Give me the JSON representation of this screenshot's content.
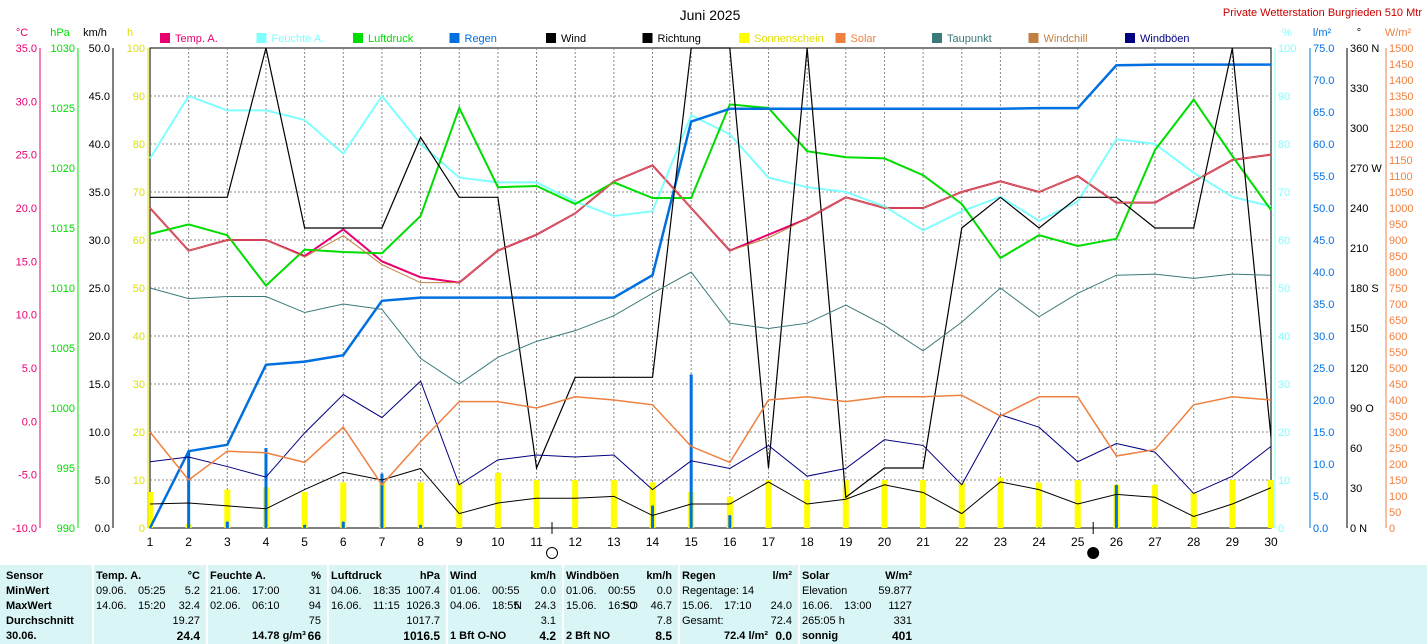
{
  "page_title": "Juni 2025",
  "station": "Private Wetterstation Burgrieden 510 Mtr",
  "colors": {
    "temp": "#e8006e",
    "humidity": "#80ffff",
    "pressure": "#00dd00",
    "rain": "#0070e0",
    "wind": "#000000",
    "direction": "#000000",
    "sunshine": "#ffff00",
    "solar": "#f08040",
    "dewpoint": "#3a7a7a",
    "windchill": "#c08040",
    "gusts": "#000080"
  },
  "legend": [
    {
      "key": "temp",
      "label": "Temp. A."
    },
    {
      "key": "humidity",
      "label": "Feuchte A."
    },
    {
      "key": "pressure",
      "label": "Luftdruck"
    },
    {
      "key": "rain",
      "label": "Regen"
    },
    {
      "key": "wind",
      "label": "Wind"
    },
    {
      "key": "direction",
      "label": "Richtung"
    },
    {
      "key": "sunshine",
      "label": "Sonnenschein"
    },
    {
      "key": "solar",
      "label": "Solar"
    },
    {
      "key": "dewpoint",
      "label": "Taupunkt"
    },
    {
      "key": "windchill",
      "label": "Windchill"
    },
    {
      "key": "gusts",
      "label": "Windböen"
    }
  ],
  "chart_data": {
    "type": "line",
    "title": "Juni 2025",
    "x": [
      1,
      2,
      3,
      4,
      5,
      6,
      7,
      8,
      9,
      10,
      11,
      12,
      13,
      14,
      15,
      16,
      17,
      18,
      19,
      20,
      21,
      22,
      23,
      24,
      25,
      26,
      27,
      28,
      29,
      30
    ],
    "axes": {
      "temp": {
        "unit": "°C",
        "min": -10,
        "max": 35,
        "ticks": [
          "35.0",
          "30.0",
          "25.0",
          "20.0",
          "15.0",
          "10.0",
          "5.0",
          "0.0",
          "-5.0",
          "-10.0"
        ],
        "color": "#e8006e"
      },
      "pressure": {
        "unit": "hPa",
        "min": 990,
        "max": 1030,
        "ticks": [
          "1030",
          "1025",
          "1020",
          "1015",
          "1010",
          "1005",
          "1000",
          "995",
          "990"
        ],
        "color": "#00dd00"
      },
      "wind": {
        "unit": "km/h",
        "min": 0,
        "max": 50,
        "ticks": [
          "50.0",
          "45.0",
          "40.0",
          "35.0",
          "30.0",
          "25.0",
          "20.0",
          "15.0",
          "10.0",
          "5.0",
          "0.0"
        ],
        "color": "#000000"
      },
      "sunshine": {
        "unit": "h",
        "min": 0,
        "max": 100,
        "ticks": [
          "100",
          "90",
          "80",
          "70",
          "60",
          "50",
          "40",
          "30",
          "20",
          "10",
          "0"
        ],
        "color": "#e0e000"
      },
      "humidity": {
        "unit": "%",
        "min": 0,
        "max": 100,
        "ticks": [
          "100",
          "90",
          "80",
          "70",
          "60",
          "50",
          "40",
          "30",
          "20",
          "10",
          "0"
        ],
        "color": "#80ffff"
      },
      "rain": {
        "unit": "l/m²",
        "min": 0,
        "max": 75,
        "ticks": [
          "75.0",
          "70.0",
          "65.0",
          "60.0",
          "55.0",
          "50.0",
          "45.0",
          "40.0",
          "35.0",
          "30.0",
          "25.0",
          "20.0",
          "15.0",
          "10.0",
          "5.0",
          "0.0"
        ],
        "color": "#0070e0"
      },
      "direction": {
        "unit": "°",
        "min": 0,
        "max": 360,
        "ticks": [
          "360 N",
          "330",
          "300",
          "270 W",
          "240",
          "210",
          "180 S",
          "150",
          "120",
          "90 O",
          "60",
          "30",
          "0 N"
        ],
        "color": "#000000"
      },
      "solar": {
        "unit": "W/m²",
        "min": 0,
        "max": 1500,
        "ticks": [
          "1500",
          "1450",
          "1400",
          "1350",
          "1300",
          "1250",
          "1200",
          "1150",
          "1100",
          "1050",
          "1000",
          "950",
          "900",
          "850",
          "800",
          "750",
          "700",
          "650",
          "600",
          "550",
          "500",
          "450",
          "400",
          "350",
          "300",
          "250",
          "200",
          "150",
          "100",
          "50",
          "0"
        ],
        "color": "#f08040"
      }
    },
    "series": [
      {
        "key": "temp",
        "axis": "temp",
        "name": "Temp. A.",
        "width": 2,
        "values": [
          20.0,
          16.0,
          17.0,
          17.0,
          15.5,
          18.0,
          15.0,
          13.5,
          13.0,
          16.0,
          17.5,
          19.5,
          22.5,
          24.0,
          20.0,
          16.0,
          17.5,
          19.0,
          21.0,
          20.0,
          20.0,
          21.5,
          22.5,
          21.5,
          23.0,
          20.5,
          20.5,
          22.5,
          24.5,
          25.0
        ]
      },
      {
        "key": "humidity",
        "axis": "humidity",
        "name": "Feuchte A.",
        "width": 2,
        "values": [
          77,
          90,
          87,
          87,
          85,
          78,
          90,
          80,
          73,
          72,
          72,
          68,
          65,
          66,
          86,
          82,
          73,
          71,
          70,
          67,
          62,
          66,
          69,
          64,
          68,
          81,
          80,
          74,
          69,
          67
        ]
      },
      {
        "key": "pressure",
        "axis": "pressure",
        "name": "Luftdruck",
        "width": 2,
        "values": [
          1014.5,
          1015.3,
          1014.4,
          1010.2,
          1013.2,
          1013.0,
          1012.9,
          1016.0,
          1025.0,
          1018.4,
          1018.5,
          1017.0,
          1018.8,
          1017.5,
          1017.5,
          1025.3,
          1025.0,
          1021.4,
          1020.9,
          1020.8,
          1019.4,
          1017.0,
          1012.5,
          1014.4,
          1013.5,
          1014.1,
          1021.5,
          1025.7,
          1021.0,
          1016.5
        ]
      },
      {
        "key": "rain",
        "axis": "rain",
        "name": "Regen",
        "width": 2.5,
        "step": true,
        "values": [
          0,
          12.0,
          13.0,
          25.5,
          26.0,
          27.0,
          35.5,
          36.0,
          36.0,
          36.0,
          36.0,
          36.0,
          36.0,
          39.5,
          63.5,
          65.5,
          65.5,
          65.5,
          65.5,
          65.5,
          65.5,
          65.5,
          65.5,
          65.6,
          65.6,
          72.3,
          72.4,
          72.4,
          72.4,
          72.4
        ]
      },
      {
        "key": "wind",
        "axis": "wind",
        "name": "Wind",
        "width": 1,
        "values": [
          2.5,
          2.6,
          2.3,
          2.0,
          4.0,
          5.8,
          5.0,
          6.2,
          1.5,
          2.6,
          3.1,
          3.1,
          3.3,
          1.3,
          2.5,
          2.5,
          4.8,
          2.5,
          3.0,
          4.5,
          3.7,
          1.5,
          4.8,
          4.0,
          2.5,
          3.5,
          3.2,
          1.2,
          2.5,
          4.2
        ]
      },
      {
        "key": "direction",
        "axis": "direction",
        "name": "Richtung",
        "width": 1.2,
        "values": [
          248,
          248,
          248,
          360,
          225,
          225,
          225,
          293,
          248,
          248,
          45,
          113,
          113,
          113,
          360,
          360,
          45,
          360,
          23,
          45,
          45,
          225,
          248,
          225,
          248,
          248,
          225,
          225,
          360,
          68
        ]
      },
      {
        "key": "dewpoint",
        "axis": "temp",
        "name": "Taupunkt",
        "width": 1,
        "values": [
          12.5,
          11.5,
          11.7,
          11.7,
          10.2,
          11.0,
          10.5,
          5.9,
          3.5,
          6.0,
          7.5,
          8.5,
          9.9,
          12.0,
          14.0,
          9.2,
          8.7,
          9.2,
          10.9,
          9.0,
          6.6,
          9.3,
          12.5,
          9.8,
          12.0,
          13.7,
          13.8,
          13.4,
          13.8,
          13.7
        ]
      },
      {
        "key": "windchill",
        "axis": "temp",
        "name": "Windchill",
        "width": 1,
        "values": [
          20.0,
          16.0,
          17.0,
          17.0,
          15.4,
          17.4,
          14.7,
          13.0,
          13.0,
          16.0,
          17.5,
          19.5,
          22.5,
          24.0,
          20.0,
          16.0,
          17.2,
          19.0,
          21.0,
          20.0,
          20.0,
          21.5,
          22.5,
          21.5,
          23.0,
          20.5,
          20.5,
          22.5,
          24.5,
          25.0
        ]
      },
      {
        "key": "gusts",
        "axis": "wind",
        "name": "Windböen",
        "width": 1,
        "values": [
          6.9,
          7.4,
          6.4,
          5.3,
          9.9,
          13.9,
          11.5,
          15.3,
          4.5,
          7.1,
          7.6,
          7.4,
          7.6,
          4.0,
          7.0,
          6.2,
          8.6,
          5.4,
          6.2,
          9.2,
          8.6,
          4.5,
          11.8,
          10.5,
          6.9,
          8.8,
          7.9,
          3.6,
          5.4,
          8.5
        ]
      },
      {
        "key": "solar",
        "axis": "solar",
        "name": "Solar",
        "width": 1.5,
        "values": [
          300,
          150,
          240,
          235,
          205,
          315,
          135,
          270,
          395,
          395,
          375,
          410,
          400,
          385,
          255,
          205,
          400,
          410,
          395,
          410,
          410,
          415,
          350,
          410,
          410,
          225,
          245,
          385,
          410,
          400
        ]
      },
      {
        "key": "sunshine",
        "axis": "sunshine",
        "name": "Sonnenschein",
        "type": "bar",
        "values": [
          7.5,
          0.8,
          8.0,
          8.5,
          7.5,
          9.5,
          9.5,
          9.5,
          9.5,
          11.5,
          10.0,
          10.0,
          10.0,
          9.5,
          7.5,
          6.5,
          10.0,
          10.0,
          10.0,
          10.0,
          10.0,
          9.5,
          10.5,
          9.5,
          10.0,
          9.0,
          9.0,
          7.5,
          10.0,
          10.0
        ]
      },
      {
        "key": "rain",
        "axis": "rain",
        "name": "Regen",
        "type": "bar",
        "values": [
          0,
          12.0,
          1.0,
          12.5,
          0.5,
          1.0,
          8.5,
          0.5,
          0,
          0,
          0,
          0,
          0,
          3.5,
          24.0,
          2.0,
          0,
          0,
          0,
          0,
          0,
          0,
          0,
          0.1,
          0,
          6.7,
          0.1,
          0,
          0,
          0
        ]
      }
    ],
    "moon_marks": [
      {
        "phase": "full",
        "x": 11
      },
      {
        "phase": "new",
        "x": 25
      }
    ],
    "grid": true
  },
  "stats": [
    {
      "header": "Sensor",
      "header_unit": "",
      "rows": [
        {
          "label": "MinWert"
        },
        {
          "label": "MaxWert"
        },
        {
          "label": "Durchschnitt"
        },
        {
          "label": "30.06."
        }
      ]
    },
    {
      "header": "Temp. A.",
      "header_unit": "°C",
      "rows": [
        {
          "a": "09.06.",
          "b": "05:25",
          "c": "5.2"
        },
        {
          "a": "14.06.",
          "b": "15:20",
          "c": "32.4"
        },
        {
          "a": "",
          "b": "",
          "c": "19.27"
        },
        {
          "a": "",
          "b": "",
          "c": "24.4"
        }
      ]
    },
    {
      "header": "Feuchte A.",
      "header_unit": "%",
      "rows": [
        {
          "a": "21.06.",
          "b": "17:00",
          "c": "31"
        },
        {
          "a": "02.06.",
          "b": "06:10",
          "c": "94"
        },
        {
          "a": "",
          "b": "",
          "c": "75"
        },
        {
          "a": "",
          "b": "14.78 g/m³",
          "c": "66"
        }
      ]
    },
    {
      "header": "Luftdruck",
      "header_unit": "hPa",
      "rows": [
        {
          "a": "04.06.",
          "b": "18:35",
          "c": "1007.4"
        },
        {
          "a": "16.06.",
          "b": "11:15",
          "c": "1026.3"
        },
        {
          "a": "",
          "b": "",
          "c": "1017.7"
        },
        {
          "a": "",
          "b": "",
          "c": "1016.5"
        }
      ]
    },
    {
      "header": "Wind",
      "header_unit": "km/h",
      "rows": [
        {
          "a": "01.06.",
          "b": "00:55",
          "c": "0.0"
        },
        {
          "a": "04.06.",
          "b": "18:55",
          "d": "N",
          "c": "24.3"
        },
        {
          "a": "",
          "b": "",
          "c": "3.1"
        },
        {
          "a": "1 Bft O-NO",
          "b": "",
          "c": "4.2"
        }
      ]
    },
    {
      "header": "Windböen",
      "header_unit": "km/h",
      "rows": [
        {
          "a": "01.06.",
          "b": "00:55",
          "c": "0.0"
        },
        {
          "a": "15.06.",
          "b": "16:50",
          "d": "SO",
          "c": "46.7"
        },
        {
          "a": "",
          "b": "",
          "c": "7.8"
        },
        {
          "a": "2 Bft NO",
          "b": "",
          "c": "8.5"
        }
      ]
    },
    {
      "header": "Regen",
      "header_unit": "l/m²",
      "rows": [
        {
          "a": "Regentage: 14",
          "b": "",
          "c": ""
        },
        {
          "a": "15.06.",
          "b": "17:10",
          "c": "24.0"
        },
        {
          "a": "Gesamt:",
          "b": "",
          "c": "72.4"
        },
        {
          "a": "",
          "b": "72.4 l/m²",
          "c": "0.0"
        }
      ]
    },
    {
      "header": "Solar",
      "header_unit": "W/m²",
      "rows": [
        {
          "a": "Elevation",
          "b": "",
          "c": "59.877"
        },
        {
          "a": "16.06.",
          "b": "13:00",
          "c": "1127"
        },
        {
          "a": "265:05 h",
          "b": "",
          "c": "331"
        },
        {
          "a": "sonnig",
          "b": "",
          "c": "401"
        }
      ]
    }
  ]
}
